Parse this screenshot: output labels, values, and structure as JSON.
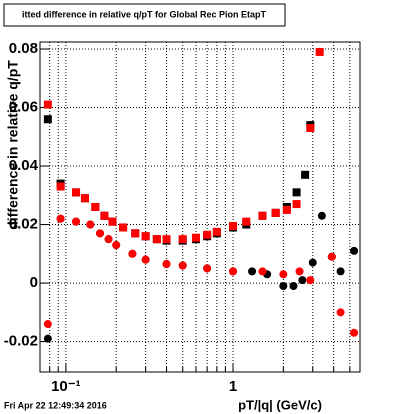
{
  "chart_data": {
    "type": "scatter",
    "title": "itted difference in relative q/pT for Global Rec Pion EtapT",
    "x_label": "pT/|q| (GeV/c)",
    "y_label": "difference in relative q/pT",
    "footer": "Fri Apr 22 12:49:34 2016",
    "xlim": [
      0.07,
      5.75
    ],
    "ylim": [
      -0.0304,
      0.0824
    ],
    "log_x": true,
    "grid": true,
    "xticks": [
      {
        "value": 0.1,
        "label": "10⁻¹"
      },
      1
    ],
    "xminorticks": [
      0.08,
      0.09,
      0.2,
      0.3,
      0.4,
      0.5,
      0.6,
      0.7,
      0.8,
      0.9,
      2,
      3,
      4,
      5
    ],
    "yticks": [
      -0.02,
      0,
      0.02,
      0.04,
      0.06,
      0.08
    ],
    "series": [
      {
        "color": "#000000",
        "marker": "square",
        "x": [
          0.078,
          0.093,
          0.115,
          0.13,
          0.15,
          0.17,
          0.19,
          0.22,
          0.26,
          0.3,
          0.35,
          0.4,
          0.5,
          0.6,
          0.7,
          0.8,
          1.0,
          1.2,
          1.5,
          1.8,
          2.1,
          2.4,
          2.7,
          2.9
        ],
        "values": [
          0.056,
          0.034,
          0.031,
          0.029,
          0.026,
          0.023,
          0.021,
          0.019,
          0.017,
          0.016,
          0.015,
          0.0145,
          0.0145,
          0.015,
          0.016,
          0.017,
          0.019,
          0.02,
          0.023,
          0.024,
          0.026,
          0.031,
          0.037,
          0.054
        ]
      },
      {
        "color": "#000000",
        "marker": "circle",
        "x": [
          0.078,
          0.093,
          0.115,
          0.14,
          0.16,
          0.18,
          0.2,
          0.25,
          0.3,
          0.4,
          0.5,
          0.7,
          1.0,
          1.3,
          1.6,
          2.0,
          2.3,
          2.6,
          3.0,
          3.4,
          3.9,
          4.4,
          5.3
        ],
        "values": [
          -0.019,
          0.022,
          0.021,
          0.02,
          0.017,
          0.015,
          0.013,
          0.01,
          0.008,
          0.0065,
          0.006,
          0.005,
          0.004,
          0.004,
          0.003,
          -0.001,
          -0.001,
          0.001,
          0.007,
          0.023,
          0.009,
          0.004,
          0.011
        ]
      },
      {
        "color": "#ff0000",
        "marker": "square",
        "x": [
          0.078,
          0.093,
          0.115,
          0.13,
          0.15,
          0.17,
          0.19,
          0.22,
          0.26,
          0.3,
          0.35,
          0.4,
          0.5,
          0.6,
          0.7,
          0.8,
          1.0,
          1.2,
          1.5,
          1.8,
          2.1,
          2.4,
          2.9,
          3.3
        ],
        "values": [
          0.061,
          0.033,
          0.031,
          0.029,
          0.026,
          0.023,
          0.021,
          0.019,
          0.017,
          0.016,
          0.015,
          0.015,
          0.015,
          0.0155,
          0.0165,
          0.0175,
          0.0195,
          0.021,
          0.023,
          0.024,
          0.025,
          0.027,
          0.053,
          0.079
        ]
      },
      {
        "color": "#ff0000",
        "marker": "circle",
        "x": [
          0.078,
          0.093,
          0.115,
          0.14,
          0.16,
          0.18,
          0.2,
          0.25,
          0.3,
          0.4,
          0.5,
          0.7,
          1.0,
          1.5,
          2.0,
          2.5,
          2.9,
          3.9,
          4.4,
          5.3
        ],
        "values": [
          -0.014,
          0.022,
          0.021,
          0.02,
          0.017,
          0.015,
          0.013,
          0.01,
          0.008,
          0.0065,
          0.006,
          0.005,
          0.004,
          0.004,
          0.003,
          0.004,
          0.001,
          0.009,
          -0.01,
          -0.017
        ]
      }
    ]
  }
}
